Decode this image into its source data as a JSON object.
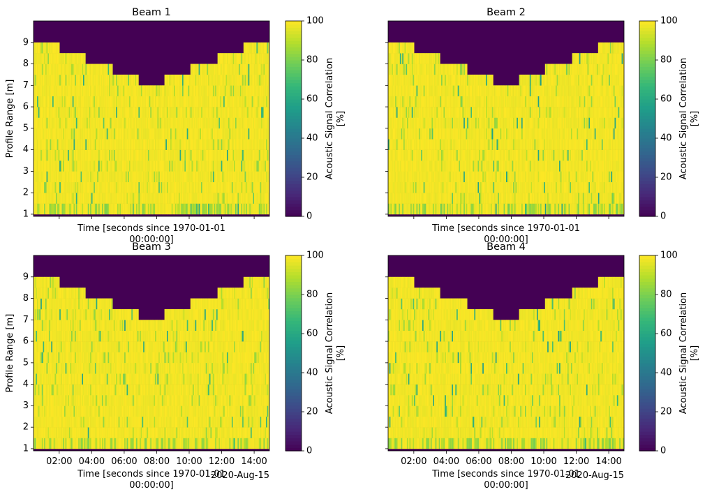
{
  "figure": {
    "colormap": "viridis",
    "mask_color": "#440154"
  },
  "chart_data": [
    {
      "type": "heatmap",
      "title": "Beam 1",
      "xlabel": "Time [seconds since 1970-01-01\n00:00:00]",
      "ylabel": "Profile Range [m]",
      "colorbar_label": "Acoustic Signal Correlation\n[%]",
      "clim": [
        0,
        100
      ],
      "colorbar_ticks": [
        "0",
        "20",
        "40",
        "60",
        "80",
        "100"
      ],
      "y_ticks": [
        "1",
        "2",
        "3",
        "4",
        "5",
        "6",
        "7",
        "8",
        "9"
      ],
      "ylim": [
        0.9,
        10.0
      ],
      "x_tick_labels": [],
      "x_offset_label": "",
      "surface_profile_m": [
        9.0,
        8.5,
        8.0,
        7.5,
        7.0,
        7.5,
        8.0,
        8.5,
        9.0
      ],
      "typical_value": 97
    },
    {
      "type": "heatmap",
      "title": "Beam 2",
      "xlabel": "Time [seconds since 1970-01-01\n00:00:00]",
      "ylabel": "Profile Range [m]",
      "colorbar_label": "Acoustic Signal Correlation\n[%]",
      "clim": [
        0,
        100
      ],
      "colorbar_ticks": [
        "0",
        "20",
        "40",
        "60",
        "80",
        "100"
      ],
      "y_ticks": [],
      "ylim": [
        0.9,
        10.0
      ],
      "x_tick_labels": [],
      "x_offset_label": "",
      "surface_profile_m": [
        9.0,
        8.5,
        8.0,
        7.5,
        7.0,
        7.5,
        8.0,
        8.5,
        9.0
      ],
      "typical_value": 97
    },
    {
      "type": "heatmap",
      "title": "Beam 3",
      "xlabel": "Time [seconds since 1970-01-01\n00:00:00]",
      "ylabel": "Profile Range [m]",
      "colorbar_label": "Acoustic Signal Correlation\n[%]",
      "clim": [
        0,
        100
      ],
      "colorbar_ticks": [
        "0",
        "20",
        "40",
        "60",
        "80",
        "100"
      ],
      "y_ticks": [
        "1",
        "2",
        "3",
        "4",
        "5",
        "6",
        "7",
        "8",
        "9"
      ],
      "ylim": [
        0.9,
        10.0
      ],
      "x_tick_labels": [
        "02:00",
        "04:00",
        "06:00",
        "08:00",
        "10:00",
        "12:00",
        "14:00"
      ],
      "x_offset_label": "2020-Aug-15",
      "surface_profile_m": [
        9.0,
        8.5,
        8.0,
        7.5,
        7.0,
        7.5,
        8.0,
        8.5,
        9.0
      ],
      "typical_value": 97
    },
    {
      "type": "heatmap",
      "title": "Beam 4",
      "xlabel": "Time [seconds since 1970-01-01\n00:00:00]",
      "ylabel": "Profile Range [m]",
      "colorbar_label": "Acoustic Signal Correlation\n[%]",
      "clim": [
        0,
        100
      ],
      "colorbar_ticks": [
        "0",
        "20",
        "40",
        "60",
        "80",
        "100"
      ],
      "y_ticks": [],
      "ylim": [
        0.9,
        10.0
      ],
      "x_tick_labels": [
        "02:00",
        "04:00",
        "06:00",
        "08:00",
        "10:00",
        "12:00",
        "14:00"
      ],
      "x_offset_label": "2020-Aug-15",
      "surface_profile_m": [
        9.0,
        8.5,
        8.0,
        7.5,
        7.0,
        7.5,
        8.0,
        8.5,
        9.0
      ],
      "typical_value": 97
    }
  ]
}
